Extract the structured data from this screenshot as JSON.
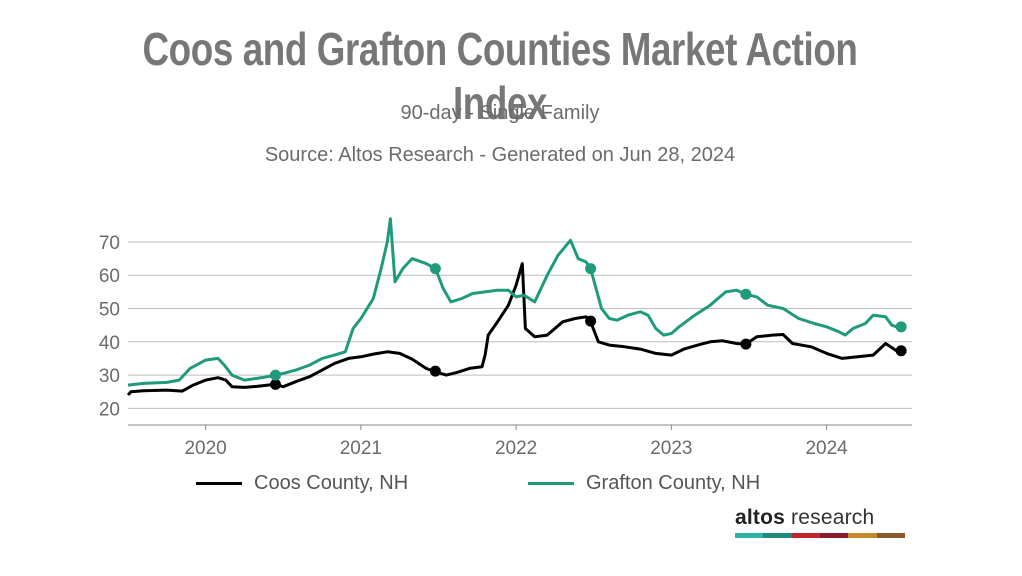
{
  "header": {
    "title": "Coos and Grafton Counties Market Action Index",
    "subtitle": "90-day - Single Family",
    "source": "Source: Altos Research - Generated on Jun 28, 2024"
  },
  "logo": {
    "bold": "altos",
    "rest": " research",
    "colors": [
      "#2bb3a3",
      "#1f8a7a",
      "#c0272d",
      "#8e1b2b",
      "#c8882b",
      "#8a5a2b"
    ]
  },
  "chart_data": {
    "type": "line",
    "title": "Coos and Grafton Counties Market Action Index",
    "subtitle": "90-day - Single Family",
    "xlim": [
      2019.5,
      2024.55
    ],
    "ylim": [
      15,
      79
    ],
    "x_ticks": [
      2020,
      2021,
      2022,
      2023,
      2024
    ],
    "x_tick_labels": [
      "2020",
      "2021",
      "2022",
      "2023",
      "2024"
    ],
    "y_ticks": [
      20,
      30,
      40,
      50,
      60,
      70
    ],
    "y_tick_labels": [
      "20",
      "30",
      "40",
      "50",
      "60",
      "70"
    ],
    "grid": true,
    "legend_position": "bottom",
    "series": [
      {
        "name": "Coos County, NH",
        "color": "#000000",
        "points": [
          [
            2019.5,
            24
          ],
          [
            2019.52,
            25
          ],
          [
            2019.6,
            25.3
          ],
          [
            2019.75,
            25.5
          ],
          [
            2019.85,
            25.2
          ],
          [
            2019.92,
            27
          ],
          [
            2020.0,
            28.5
          ],
          [
            2020.08,
            29.2
          ],
          [
            2020.13,
            28.5
          ],
          [
            2020.17,
            26.5
          ],
          [
            2020.25,
            26.3
          ],
          [
            2020.33,
            26.6
          ],
          [
            2020.4,
            27
          ],
          [
            2020.45,
            27.2
          ],
          [
            2020.5,
            26.5
          ],
          [
            2020.58,
            28
          ],
          [
            2020.67,
            29.5
          ],
          [
            2020.75,
            31.5
          ],
          [
            2020.83,
            33.5
          ],
          [
            2020.92,
            35
          ],
          [
            2021.0,
            35.5
          ],
          [
            2021.08,
            36.3
          ],
          [
            2021.17,
            37
          ],
          [
            2021.25,
            36.5
          ],
          [
            2021.33,
            34.8
          ],
          [
            2021.42,
            32
          ],
          [
            2021.48,
            31
          ],
          [
            2021.55,
            30
          ],
          [
            2021.62,
            30.8
          ],
          [
            2021.7,
            32
          ],
          [
            2021.78,
            32.5
          ],
          [
            2021.8,
            36
          ],
          [
            2021.82,
            42
          ],
          [
            2021.88,
            46
          ],
          [
            2021.95,
            51
          ],
          [
            2022.0,
            57
          ],
          [
            2022.04,
            63.5
          ],
          [
            2022.06,
            44
          ],
          [
            2022.12,
            41.5
          ],
          [
            2022.2,
            42
          ],
          [
            2022.3,
            46
          ],
          [
            2022.38,
            47
          ],
          [
            2022.45,
            47.5
          ],
          [
            2022.48,
            46
          ],
          [
            2022.53,
            40
          ],
          [
            2022.6,
            39
          ],
          [
            2022.7,
            38.5
          ],
          [
            2022.8,
            37.8
          ],
          [
            2022.9,
            36.5
          ],
          [
            2023.0,
            36
          ],
          [
            2023.08,
            37.8
          ],
          [
            2023.17,
            39
          ],
          [
            2023.25,
            40
          ],
          [
            2023.33,
            40.3
          ],
          [
            2023.42,
            39.5
          ],
          [
            2023.48,
            39.3
          ],
          [
            2023.55,
            41.5
          ],
          [
            2023.65,
            42
          ],
          [
            2023.72,
            42.2
          ],
          [
            2023.78,
            39.5
          ],
          [
            2023.9,
            38.5
          ],
          [
            2024.0,
            36.5
          ],
          [
            2024.1,
            35
          ],
          [
            2024.2,
            35.5
          ],
          [
            2024.3,
            36
          ],
          [
            2024.38,
            39.5
          ],
          [
            2024.45,
            37.3
          ]
        ]
      },
      {
        "name": "Grafton County, NH",
        "color": "#1f9a7a",
        "points": [
          [
            2019.5,
            27
          ],
          [
            2019.6,
            27.5
          ],
          [
            2019.75,
            27.8
          ],
          [
            2019.83,
            28.5
          ],
          [
            2019.9,
            32
          ],
          [
            2020.0,
            34.5
          ],
          [
            2020.08,
            35
          ],
          [
            2020.12,
            33
          ],
          [
            2020.17,
            30
          ],
          [
            2020.25,
            28.5
          ],
          [
            2020.33,
            29
          ],
          [
            2020.4,
            29.5
          ],
          [
            2020.45,
            30
          ],
          [
            2020.5,
            30.5
          ],
          [
            2020.58,
            31.5
          ],
          [
            2020.67,
            33
          ],
          [
            2020.75,
            35
          ],
          [
            2020.83,
            36
          ],
          [
            2020.9,
            37
          ],
          [
            2020.95,
            44
          ],
          [
            2021.0,
            47
          ],
          [
            2021.08,
            53
          ],
          [
            2021.13,
            62
          ],
          [
            2021.17,
            70
          ],
          [
            2021.19,
            77
          ],
          [
            2021.22,
            58
          ],
          [
            2021.27,
            62
          ],
          [
            2021.33,
            65
          ],
          [
            2021.42,
            63.5
          ],
          [
            2021.48,
            62
          ],
          [
            2021.53,
            56
          ],
          [
            2021.58,
            52
          ],
          [
            2021.65,
            53
          ],
          [
            2021.72,
            54.5
          ],
          [
            2021.8,
            55
          ],
          [
            2021.88,
            55.5
          ],
          [
            2021.95,
            55.5
          ],
          [
            2022.0,
            53.5
          ],
          [
            2022.05,
            54
          ],
          [
            2022.12,
            52
          ],
          [
            2022.2,
            60
          ],
          [
            2022.27,
            66
          ],
          [
            2022.35,
            70.5
          ],
          [
            2022.4,
            65
          ],
          [
            2022.45,
            64
          ],
          [
            2022.48,
            62
          ],
          [
            2022.55,
            50
          ],
          [
            2022.6,
            47
          ],
          [
            2022.65,
            46.5
          ],
          [
            2022.72,
            48
          ],
          [
            2022.8,
            49
          ],
          [
            2022.85,
            48
          ],
          [
            2022.9,
            44
          ],
          [
            2022.95,
            42
          ],
          [
            2023.0,
            42.5
          ],
          [
            2023.05,
            44.5
          ],
          [
            2023.15,
            48
          ],
          [
            2023.25,
            51
          ],
          [
            2023.35,
            55
          ],
          [
            2023.42,
            55.5
          ],
          [
            2023.48,
            54.3
          ],
          [
            2023.55,
            53.5
          ],
          [
            2023.62,
            51
          ],
          [
            2023.72,
            50
          ],
          [
            2023.82,
            47
          ],
          [
            2023.92,
            45.5
          ],
          [
            2024.0,
            44.5
          ],
          [
            2024.08,
            43
          ],
          [
            2024.12,
            42
          ],
          [
            2024.17,
            44
          ],
          [
            2024.25,
            45.5
          ],
          [
            2024.3,
            48
          ],
          [
            2024.38,
            47.5
          ],
          [
            2024.42,
            45
          ],
          [
            2024.45,
            44.5
          ]
        ]
      }
    ],
    "markers": [
      {
        "series": 0,
        "x": 2020.45,
        "y": 27.2
      },
      {
        "series": 0,
        "x": 2021.48,
        "y": 31.2
      },
      {
        "series": 0,
        "x": 2022.48,
        "y": 46.2
      },
      {
        "series": 0,
        "x": 2023.48,
        "y": 39.3
      },
      {
        "series": 0,
        "x": 2024.48,
        "y": 37.3
      },
      {
        "series": 1,
        "x": 2020.45,
        "y": 30
      },
      {
        "series": 1,
        "x": 2021.48,
        "y": 62
      },
      {
        "series": 1,
        "x": 2022.48,
        "y": 62
      },
      {
        "series": 1,
        "x": 2023.48,
        "y": 54.3
      },
      {
        "series": 1,
        "x": 2024.48,
        "y": 44.5
      }
    ]
  }
}
